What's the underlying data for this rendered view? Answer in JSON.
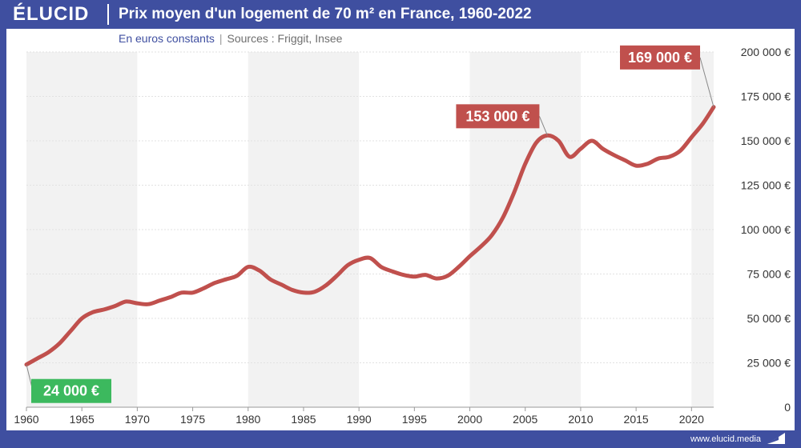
{
  "header": {
    "logo": "ÉLUCID",
    "title": "Prix moyen d'un logement de 70 m² en France, 1960-2022"
  },
  "subtitle": {
    "unit": "En euros constants",
    "separator": "|",
    "sources": "Sources : Friggit, Insee"
  },
  "footer": {
    "credit": "www.elucid.media"
  },
  "colors": {
    "brand": "#3f4fa0",
    "line": "#c0504d",
    "callout_red": "#c0504d",
    "callout_green": "#3cb95e",
    "band_light": "#f2f2f2"
  },
  "chart_data": {
    "type": "line",
    "x": [
      1960,
      1961,
      1962,
      1963,
      1964,
      1965,
      1966,
      1967,
      1968,
      1969,
      1970,
      1971,
      1972,
      1973,
      1974,
      1975,
      1976,
      1977,
      1978,
      1979,
      1980,
      1981,
      1982,
      1983,
      1984,
      1985,
      1986,
      1987,
      1988,
      1989,
      1990,
      1991,
      1992,
      1993,
      1994,
      1995,
      1996,
      1997,
      1998,
      1999,
      2000,
      2001,
      2002,
      2003,
      2004,
      2005,
      2006,
      2007,
      2008,
      2009,
      2010,
      2011,
      2012,
      2013,
      2014,
      2015,
      2016,
      2017,
      2018,
      2019,
      2020,
      2021,
      2022
    ],
    "series": [
      {
        "values": [
          24000,
          27500,
          31000,
          36000,
          43000,
          50000,
          53500,
          55000,
          57000,
          59500,
          58500,
          58000,
          60000,
          62000,
          64500,
          64500,
          67000,
          70000,
          72000,
          74000,
          79000,
          77000,
          72000,
          69000,
          66000,
          64500,
          65000,
          68500,
          74000,
          80000,
          83000,
          84000,
          79000,
          76500,
          74500,
          73500,
          74500,
          72500,
          74000,
          79000,
          85000,
          90500,
          97000,
          107000,
          121000,
          137000,
          149000,
          153000,
          150000,
          141000,
          145500,
          150000,
          145500,
          142000,
          139000,
          136000,
          137000,
          140000,
          141000,
          144500,
          152000,
          159500,
          169000
        ]
      }
    ],
    "xlim": [
      1960,
      2022
    ],
    "ylim": [
      0,
      200000
    ],
    "x_ticks": [
      1960,
      1965,
      1970,
      1975,
      1980,
      1985,
      1990,
      1995,
      2000,
      2005,
      2010,
      2015,
      2020
    ],
    "y_ticks": [
      0,
      25000,
      50000,
      75000,
      100000,
      125000,
      150000,
      175000,
      200000
    ],
    "y_tick_labels": [
      "0",
      "25 000 €",
      "50 000 €",
      "75 000 €",
      "100 000 €",
      "125 000 €",
      "150 000 €",
      "175 000 €",
      "200 000 €"
    ],
    "y_axis_side": "right",
    "shaded_bands": [
      [
        1960,
        1970
      ],
      [
        1980,
        1990
      ],
      [
        2000,
        2010
      ],
      [
        2020,
        2022
      ]
    ],
    "annotations": [
      {
        "x": 1960,
        "y": 24000,
        "label": "24 000 €",
        "color": "green"
      },
      {
        "x": 2007,
        "y": 153000,
        "label": "153 000 €",
        "color": "red"
      },
      {
        "x": 2022,
        "y": 169000,
        "label": "169 000 €",
        "color": "red"
      }
    ]
  }
}
